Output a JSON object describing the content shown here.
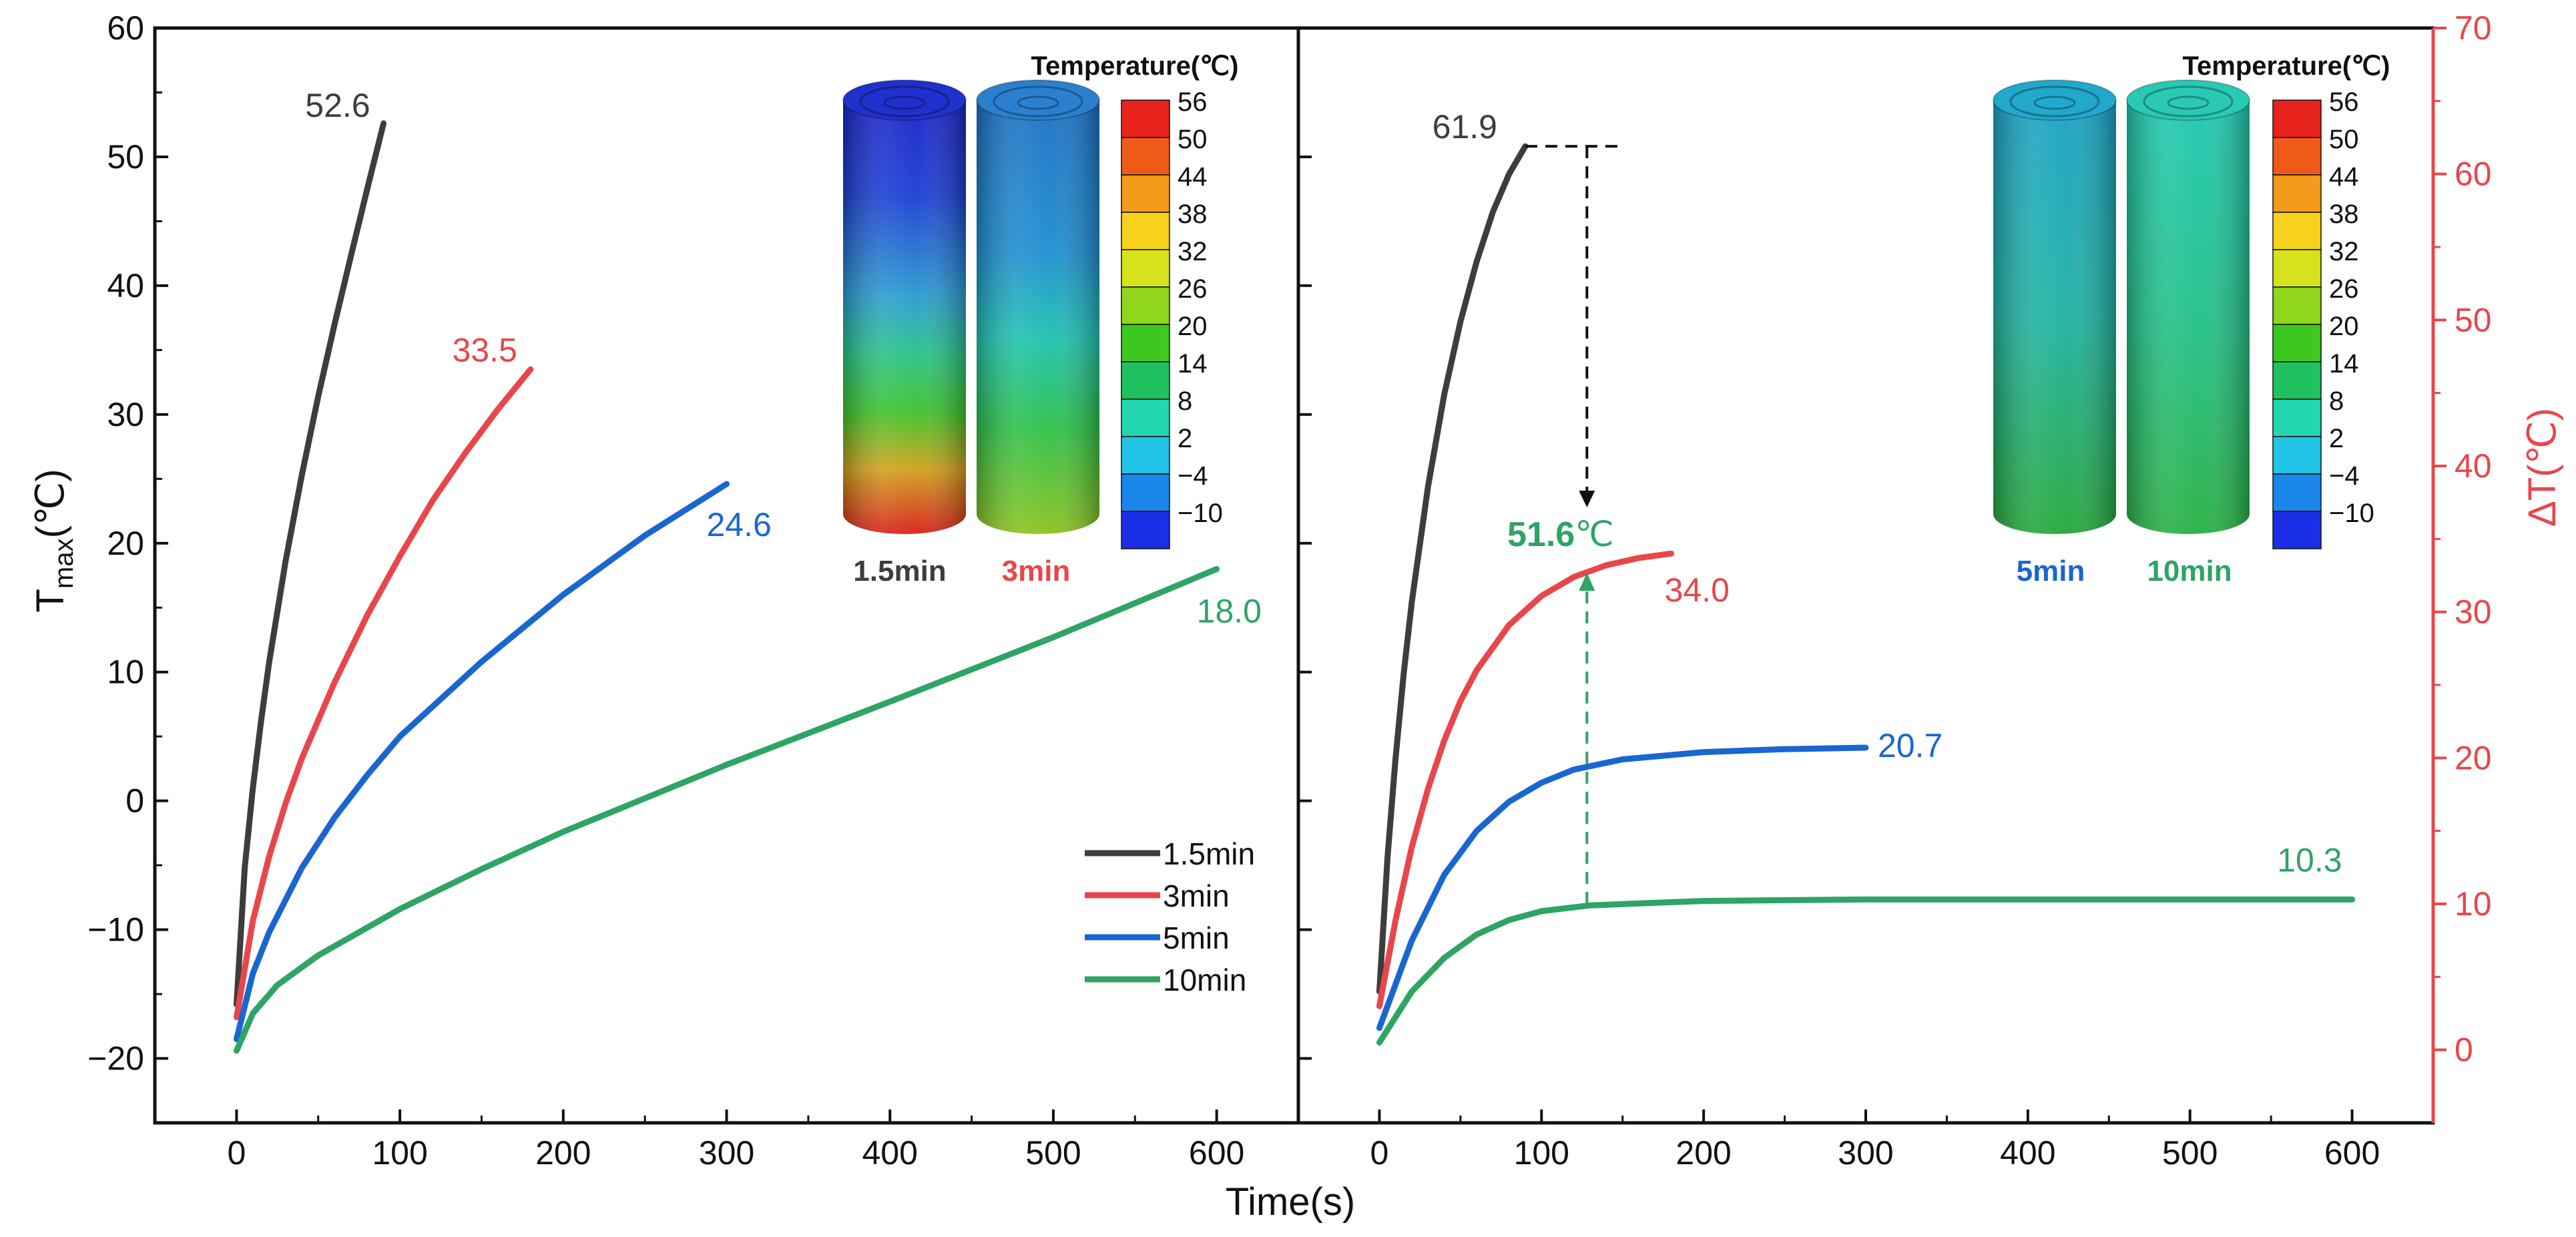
{
  "colors": {
    "s1_5": "#3d3d3d",
    "s3": "#e8464b",
    "s5": "#1a66d1",
    "s10": "#2ea465",
    "axis": "#111111",
    "right_axis": "#e8464b",
    "annotation_green": "#2ea465"
  },
  "axes": {
    "xlabel": "Time(s)",
    "left_ylabel_main": "T",
    "left_ylabel_sub": "max",
    "left_ylabel_unit": "(℃)",
    "right_ylabel": "ΔT(℃)"
  },
  "legend": {
    "placement": "lower-right of left panel",
    "items": [
      "1.5min",
      "3min",
      "5min",
      "10min"
    ]
  },
  "colorbar": {
    "title": "Temperature(℃)",
    "ticks": [
      "56",
      "50",
      "44",
      "38",
      "32",
      "26",
      "20",
      "14",
      "8",
      "2",
      "−4",
      "−10"
    ]
  },
  "insets": {
    "left": [
      "1.5min",
      "3min"
    ],
    "right": [
      "5min",
      "10min"
    ]
  },
  "annotation": {
    "value": "51.6",
    "unit": "℃"
  },
  "chart_data": [
    {
      "type": "line",
      "panel": "left",
      "xlim": [
        -50,
        650
      ],
      "ylim": [
        -25,
        60
      ],
      "xticks": [
        "0",
        "100",
        "200",
        "300",
        "400",
        "500",
        "600"
      ],
      "yticks": [
        "−20",
        "−10",
        "0",
        "10",
        "20",
        "30",
        "40",
        "50",
        "60"
      ],
      "grid": false,
      "series": [
        {
          "name": "1.5min",
          "end_label": "52.6",
          "points": [
            [
              0,
              -15.8
            ],
            [
              5,
              -5.2
            ],
            [
              10,
              1.0
            ],
            [
              15,
              6.2
            ],
            [
              20,
              10.8
            ],
            [
              30,
              18.6
            ],
            [
              40,
              25.3
            ],
            [
              50,
              31.4
            ],
            [
              60,
              37.0
            ],
            [
              70,
              42.3
            ],
            [
              80,
              47.5
            ],
            [
              90,
              52.6
            ]
          ]
        },
        {
          "name": "3min",
          "end_label": "33.5",
          "points": [
            [
              0,
              -16.8
            ],
            [
              10,
              -9.3
            ],
            [
              20,
              -4.3
            ],
            [
              30,
              -0.2
            ],
            [
              40,
              3.3
            ],
            [
              60,
              9.2
            ],
            [
              80,
              14.4
            ],
            [
              100,
              19.0
            ],
            [
              120,
              23.3
            ],
            [
              140,
              27.0
            ],
            [
              160,
              30.4
            ],
            [
              180,
              33.5
            ]
          ]
        },
        {
          "name": "5min",
          "end_label": "24.6",
          "points": [
            [
              0,
              -18.5
            ],
            [
              10,
              -13.4
            ],
            [
              20,
              -10.2
            ],
            [
              40,
              -5.2
            ],
            [
              60,
              -1.3
            ],
            [
              80,
              2.0
            ],
            [
              100,
              5.0
            ],
            [
              150,
              10.8
            ],
            [
              200,
              16.0
            ],
            [
              250,
              20.6
            ],
            [
              300,
              24.6
            ]
          ]
        },
        {
          "name": "10min",
          "end_label": "18.0",
          "points": [
            [
              0,
              -19.4
            ],
            [
              10,
              -16.5
            ],
            [
              25,
              -14.3
            ],
            [
              50,
              -12.0
            ],
            [
              100,
              -8.4
            ],
            [
              150,
              -5.3
            ],
            [
              200,
              -2.4
            ],
            [
              300,
              2.8
            ],
            [
              400,
              7.7
            ],
            [
              500,
              12.7
            ],
            [
              600,
              18.0
            ]
          ]
        }
      ]
    },
    {
      "type": "line",
      "panel": "right",
      "xlim": [
        -50,
        650
      ],
      "y2lim": [
        -5,
        70
      ],
      "xticks": [
        "0",
        "100",
        "200",
        "300",
        "400",
        "500",
        "600"
      ],
      "y2ticks": [
        "0",
        "10",
        "20",
        "30",
        "40",
        "50",
        "60",
        "70"
      ],
      "grid": false,
      "series": [
        {
          "name": "1.5min",
          "end_label": "61.9",
          "points": [
            [
              0,
              4.0
            ],
            [
              5,
              13.2
            ],
            [
              10,
              20.0
            ],
            [
              15,
              25.8
            ],
            [
              20,
              30.7
            ],
            [
              30,
              38.6
            ],
            [
              40,
              44.9
            ],
            [
              50,
              49.9
            ],
            [
              60,
              54.0
            ],
            [
              70,
              57.4
            ],
            [
              80,
              60.0
            ],
            [
              90,
              61.9
            ]
          ]
        },
        {
          "name": "3min",
          "end_label": "34.0",
          "points": [
            [
              0,
              3.0
            ],
            [
              10,
              8.9
            ],
            [
              20,
              13.9
            ],
            [
              30,
              17.9
            ],
            [
              40,
              21.2
            ],
            [
              50,
              23.9
            ],
            [
              60,
              26.0
            ],
            [
              80,
              29.1
            ],
            [
              100,
              31.1
            ],
            [
              120,
              32.4
            ],
            [
              140,
              33.2
            ],
            [
              160,
              33.7
            ],
            [
              180,
              34.0
            ]
          ]
        },
        {
          "name": "5min",
          "end_label": "20.7",
          "points": [
            [
              0,
              1.5
            ],
            [
              20,
              7.5
            ],
            [
              40,
              12.0
            ],
            [
              60,
              15.0
            ],
            [
              80,
              17.0
            ],
            [
              100,
              18.3
            ],
            [
              120,
              19.2
            ],
            [
              150,
              19.9
            ],
            [
              200,
              20.4
            ],
            [
              250,
              20.6
            ],
            [
              300,
              20.7
            ]
          ]
        },
        {
          "name": "10min",
          "end_label": "10.3",
          "points": [
            [
              0,
              0.5
            ],
            [
              20,
              4.0
            ],
            [
              40,
              6.3
            ],
            [
              60,
              7.9
            ],
            [
              80,
              8.9
            ],
            [
              100,
              9.5
            ],
            [
              130,
              9.9
            ],
            [
              200,
              10.2
            ],
            [
              300,
              10.3
            ],
            [
              450,
              10.3
            ],
            [
              600,
              10.3
            ]
          ]
        }
      ]
    }
  ]
}
